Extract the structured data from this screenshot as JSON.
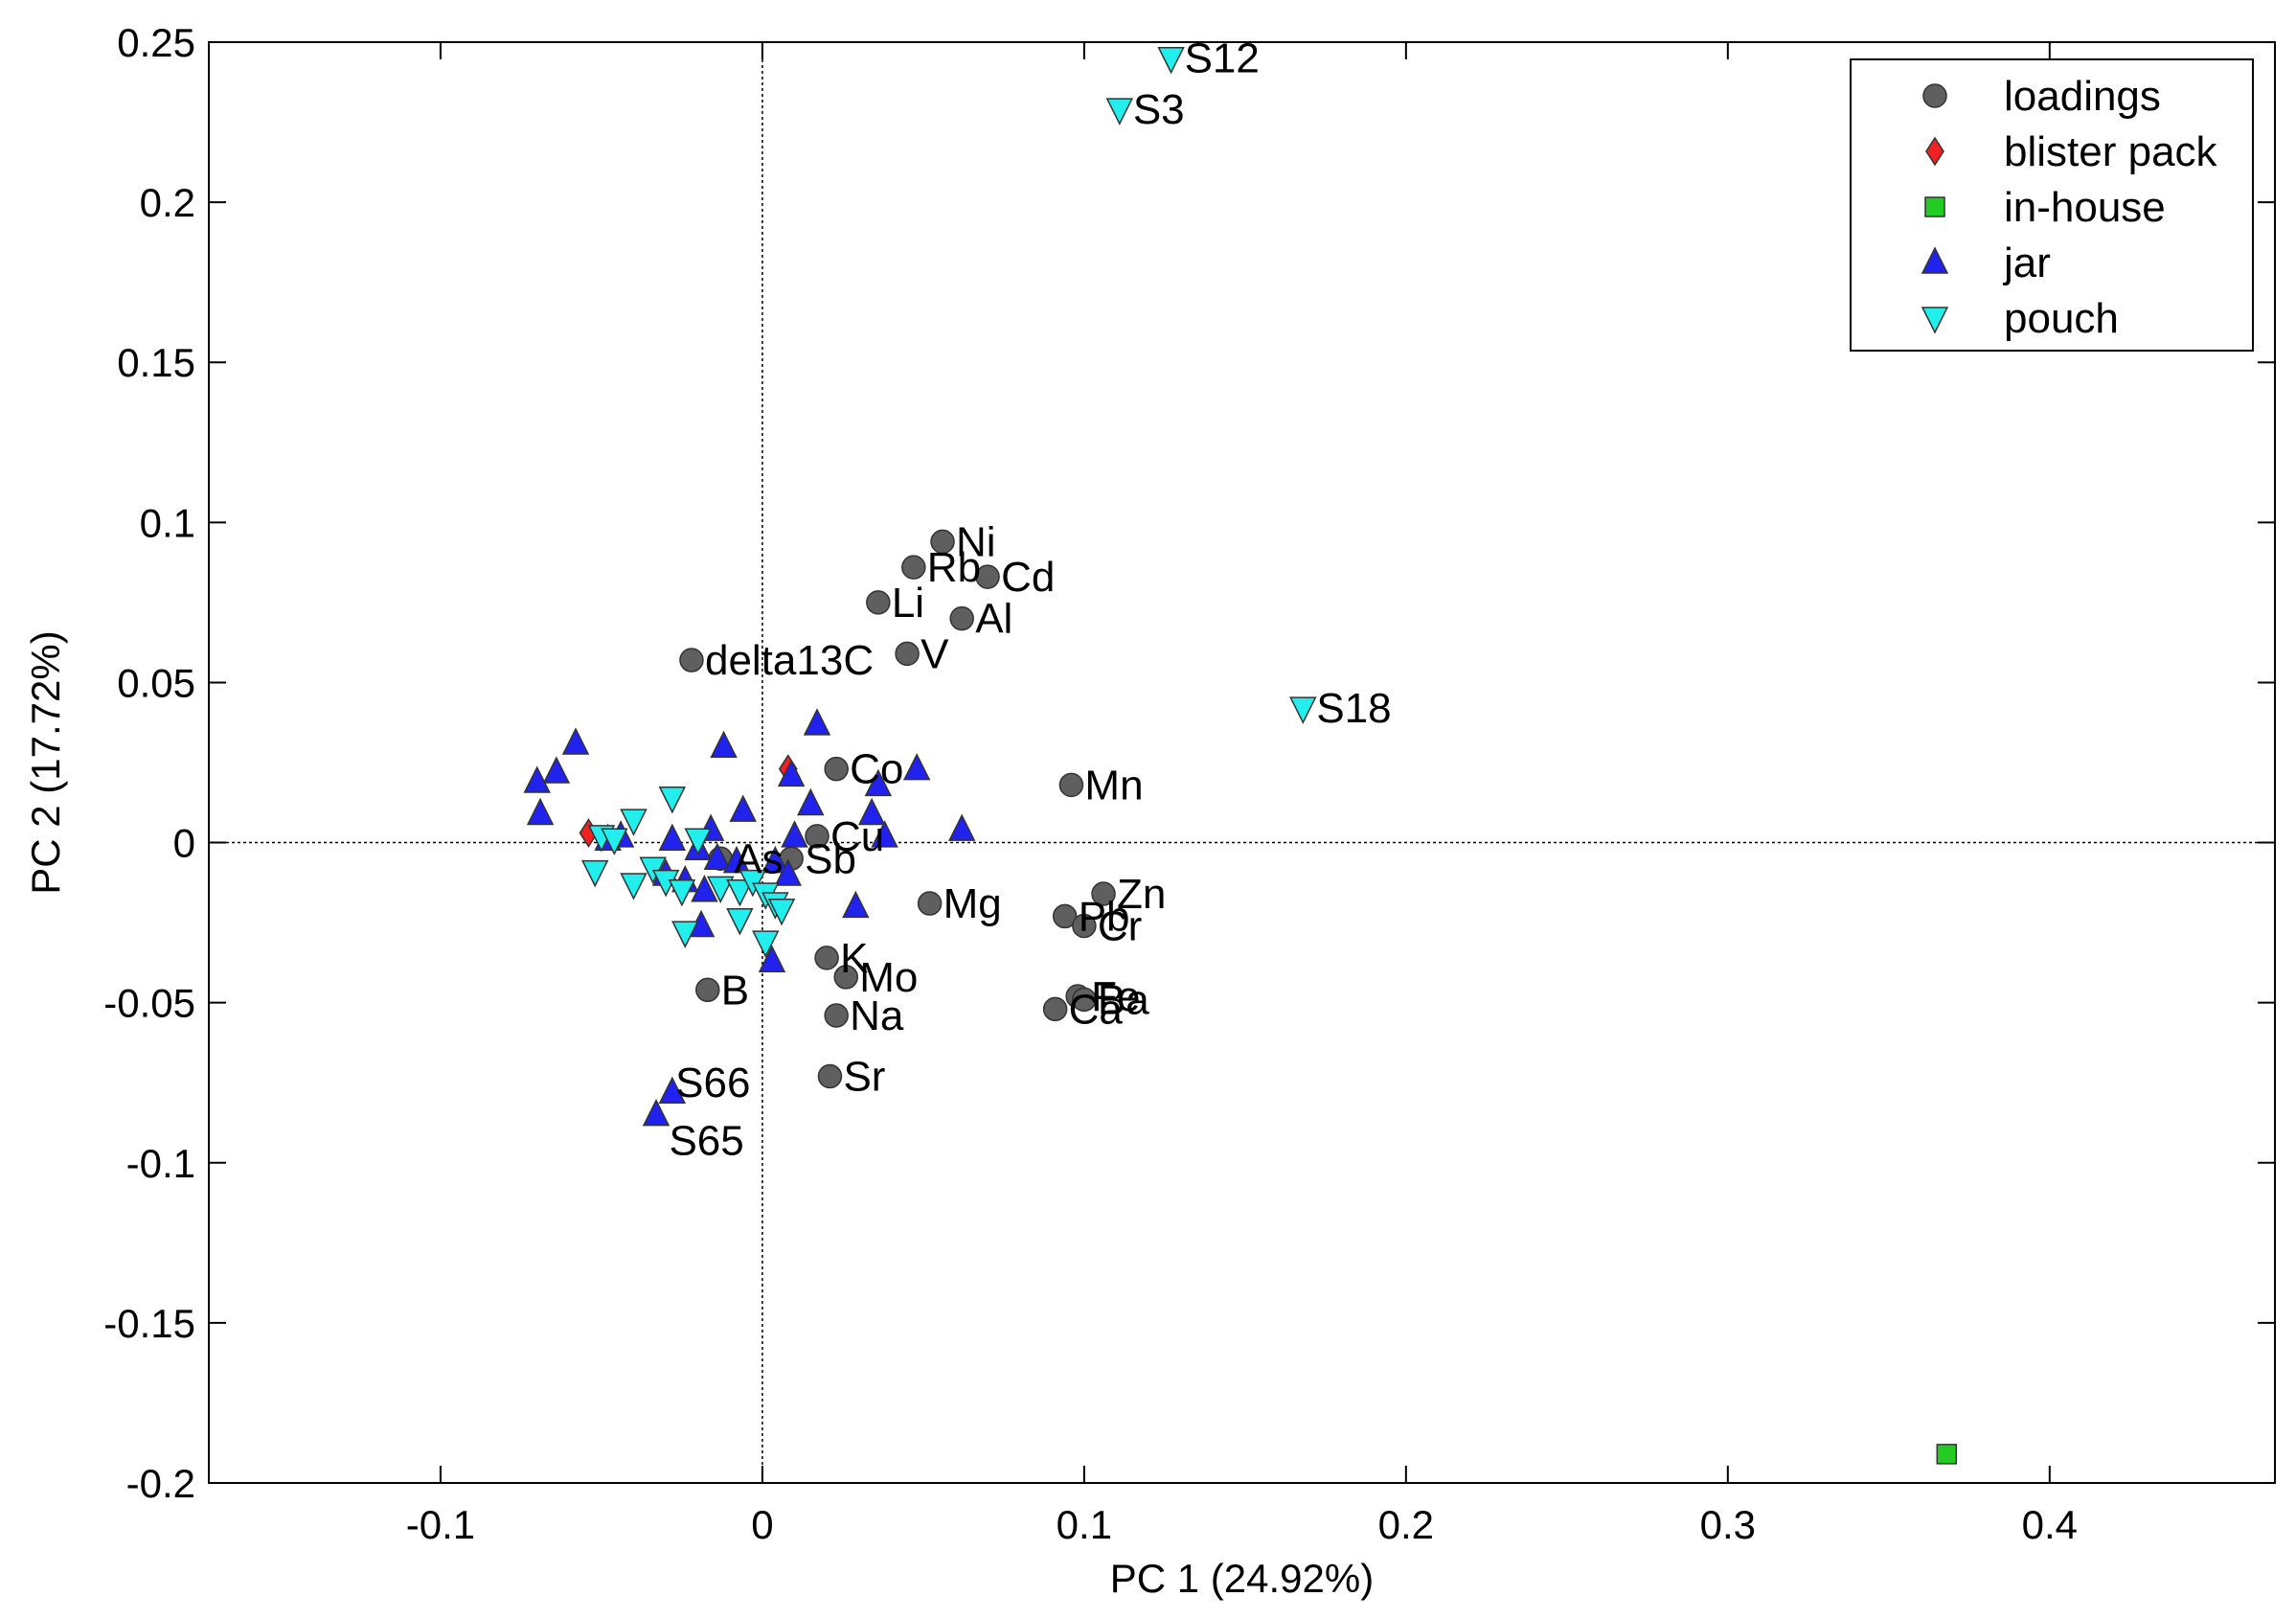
{
  "chart_data": {
    "type": "scatter",
    "title": "",
    "xlabel": "PC 1 (24.92%)",
    "ylabel": "PC 2 (17.72%)",
    "xlim": [
      -0.172,
      0.47
    ],
    "ylim": [
      -0.2,
      0.25
    ],
    "xticks": [
      -0.1,
      0,
      0.1,
      0.2,
      0.3,
      0.4
    ],
    "xtick_labels": [
      "-0.1",
      "0",
      "0.1",
      "0.2",
      "0.3",
      "0.4"
    ],
    "yticks": [
      -0.2,
      -0.15,
      -0.1,
      -0.05,
      0,
      0.05,
      0.1,
      0.15,
      0.2,
      0.25
    ],
    "ytick_labels": [
      "-0.2",
      "-0.15",
      "-0.1",
      "-0.05",
      "0",
      "0.05",
      "0.1",
      "0.15",
      "0.2",
      "0.25"
    ],
    "grid": false,
    "legend_position": "top-right",
    "series": [
      {
        "name": "loadings",
        "marker": "circle",
        "color": "#5f5f5f",
        "points": [
          {
            "x": 0.056,
            "y": 0.094,
            "label": "Ni"
          },
          {
            "x": 0.047,
            "y": 0.086,
            "label": "Rb"
          },
          {
            "x": 0.07,
            "y": 0.083,
            "label": "Cd"
          },
          {
            "x": 0.036,
            "y": 0.075,
            "label": "Li"
          },
          {
            "x": 0.062,
            "y": 0.07,
            "label": "Al"
          },
          {
            "x": -0.022,
            "y": 0.057,
            "label": "delta13C"
          },
          {
            "x": 0.045,
            "y": 0.059,
            "label": "V"
          },
          {
            "x": 0.023,
            "y": 0.023,
            "label": "Co"
          },
          {
            "x": 0.096,
            "y": 0.018,
            "label": "Mn"
          },
          {
            "x": 0.017,
            "y": 0.002,
            "label": "Cu"
          },
          {
            "x": -0.013,
            "y": -0.005,
            "label": "As"
          },
          {
            "x": 0.009,
            "y": -0.005,
            "label": "Sb"
          },
          {
            "x": 0.052,
            "y": -0.019,
            "label": "Mg"
          },
          {
            "x": 0.094,
            "y": -0.023,
            "label": "Pb"
          },
          {
            "x": 0.106,
            "y": -0.016,
            "label": "Zn"
          },
          {
            "x": 0.1,
            "y": -0.026,
            "label": "Cr"
          },
          {
            "x": 0.02,
            "y": -0.036,
            "label": "K"
          },
          {
            "x": 0.026,
            "y": -0.042,
            "label": "Mo"
          },
          {
            "x": -0.017,
            "y": -0.046,
            "label": "B"
          },
          {
            "x": 0.098,
            "y": -0.048,
            "label": "Fe"
          },
          {
            "x": 0.1,
            "y": -0.049,
            "label": "Ba"
          },
          {
            "x": 0.091,
            "y": -0.052,
            "label": "Ca"
          },
          {
            "x": 0.023,
            "y": -0.054,
            "label": "Na"
          },
          {
            "x": 0.021,
            "y": -0.073,
            "label": "Sr"
          }
        ]
      },
      {
        "name": "blister pack",
        "marker": "diamond",
        "color": "#ee2222",
        "points": [
          {
            "x": 0.008,
            "y": 0.023
          },
          {
            "x": -0.054,
            "y": 0.003
          }
        ]
      },
      {
        "name": "in-house",
        "marker": "square",
        "color": "#22cc22",
        "points": [
          {
            "x": 0.368,
            "y": -0.191
          }
        ]
      },
      {
        "name": "jar",
        "marker": "triangle-up",
        "color": "#2222ee",
        "points": [
          {
            "x": -0.058,
            "y": 0.031
          },
          {
            "x": -0.064,
            "y": 0.022
          },
          {
            "x": -0.07,
            "y": 0.019
          },
          {
            "x": -0.069,
            "y": 0.009
          },
          {
            "x": -0.012,
            "y": 0.03
          },
          {
            "x": 0.017,
            "y": 0.037
          },
          {
            "x": 0.009,
            "y": 0.021
          },
          {
            "x": 0.048,
            "y": 0.023
          },
          {
            "x": 0.036,
            "y": 0.018
          },
          {
            "x": 0.015,
            "y": 0.012
          },
          {
            "x": -0.006,
            "y": 0.01
          },
          {
            "x": 0.034,
            "y": 0.009
          },
          {
            "x": -0.016,
            "y": 0.004
          },
          {
            "x": -0.028,
            "y": 0.001
          },
          {
            "x": 0.062,
            "y": 0.004
          },
          {
            "x": 0.038,
            "y": 0.002
          },
          {
            "x": 0.01,
            "y": 0.002
          },
          {
            "x": -0.044,
            "y": 0.002
          },
          {
            "x": -0.048,
            "y": 0.001
          },
          {
            "x": -0.02,
            "y": -0.002
          },
          {
            "x": -0.014,
            "y": -0.005
          },
          {
            "x": -0.008,
            "y": -0.006
          },
          {
            "x": 0.004,
            "y": -0.006
          },
          {
            "x": -0.03,
            "y": -0.01
          },
          {
            "x": -0.024,
            "y": -0.012
          },
          {
            "x": -0.018,
            "y": -0.015
          },
          {
            "x": 0.008,
            "y": -0.01
          },
          {
            "x": 0.029,
            "y": -0.02
          },
          {
            "x": -0.019,
            "y": -0.026
          },
          {
            "x": 0.003,
            "y": -0.037
          },
          {
            "x": -0.028,
            "y": -0.078
          },
          {
            "x": -0.033,
            "y": -0.085
          }
        ]
      },
      {
        "name": "pouch",
        "marker": "triangle-down",
        "color": "#22eeee",
        "points": [
          {
            "x": 0.127,
            "y": 0.245,
            "label": "S12"
          },
          {
            "x": 0.111,
            "y": 0.229,
            "label": "S3"
          },
          {
            "x": 0.168,
            "y": 0.042,
            "label": "S18"
          },
          {
            "x": -0.028,
            "y": 0.014
          },
          {
            "x": -0.04,
            "y": 0.007
          },
          {
            "x": -0.05,
            "y": 0.002
          },
          {
            "x": -0.046,
            "y": 0.001
          },
          {
            "x": -0.02,
            "y": 0.001
          },
          {
            "x": -0.034,
            "y": -0.008
          },
          {
            "x": -0.052,
            "y": -0.009
          },
          {
            "x": -0.04,
            "y": -0.013
          },
          {
            "x": -0.03,
            "y": -0.012
          },
          {
            "x": -0.025,
            "y": -0.015
          },
          {
            "x": -0.013,
            "y": -0.014
          },
          {
            "x": -0.007,
            "y": -0.015
          },
          {
            "x": -0.003,
            "y": -0.012
          },
          {
            "x": 0.001,
            "y": -0.016
          },
          {
            "x": 0.004,
            "y": -0.019
          },
          {
            "x": 0.006,
            "y": -0.021
          },
          {
            "x": -0.007,
            "y": -0.024
          },
          {
            "x": -0.024,
            "y": -0.028
          },
          {
            "x": 0.001,
            "y": -0.031
          }
        ]
      }
    ],
    "extra_labels": [
      {
        "text": "S66",
        "x": -0.027,
        "y": -0.075,
        "anchor": "start"
      },
      {
        "text": "S65",
        "x": -0.029,
        "y": -0.093,
        "anchor": "start"
      }
    ]
  }
}
